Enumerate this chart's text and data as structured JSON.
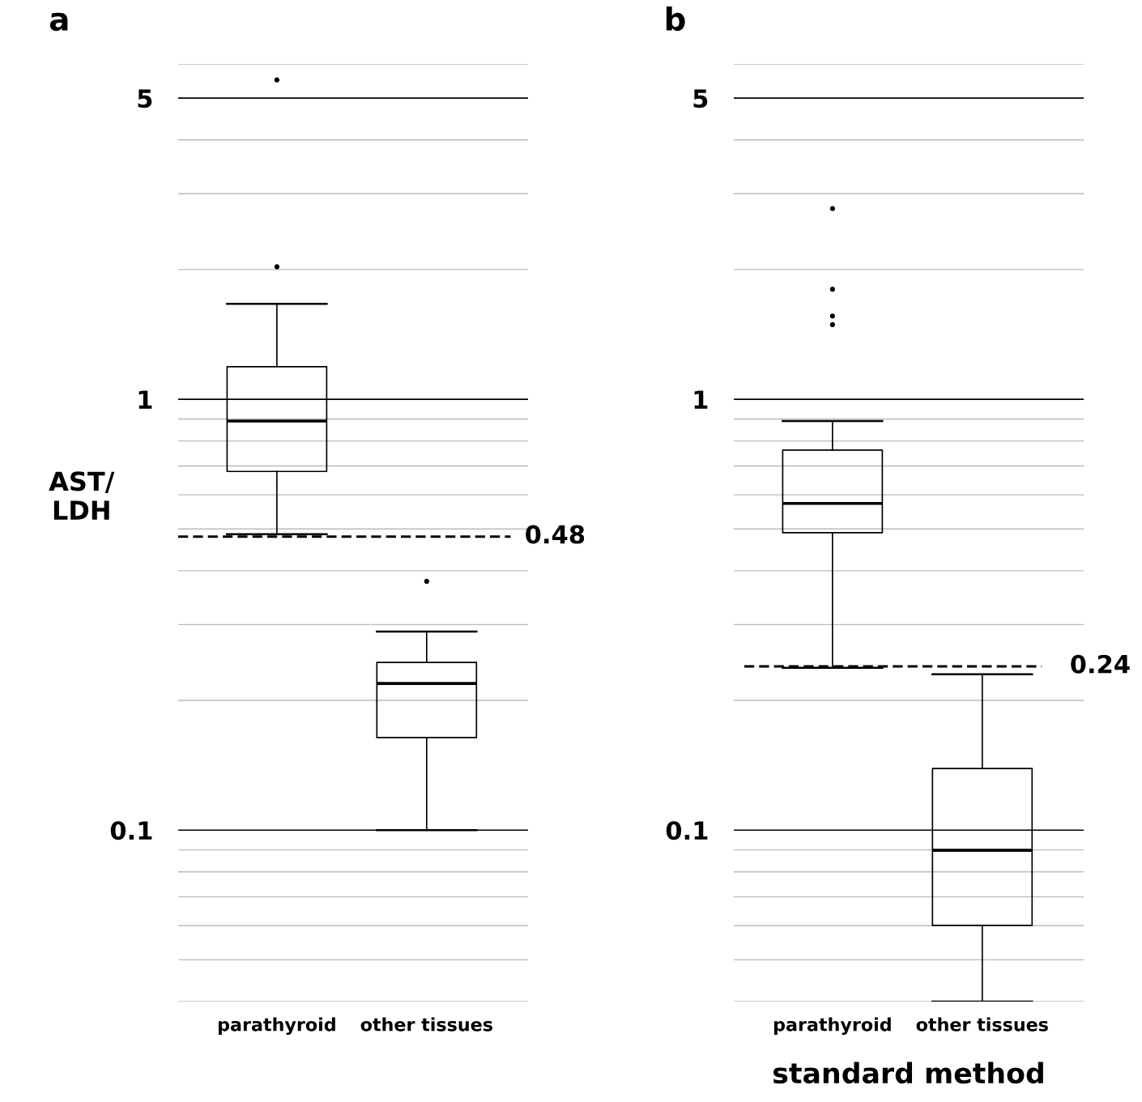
{
  "chart_data": [
    {
      "type": "box",
      "title": "a",
      "ylabel": "AST/\nLDH",
      "categories": [
        "parathyroid",
        "other tissues"
      ],
      "log": true,
      "ylim": [
        0.04,
        6
      ],
      "grid": "y",
      "yticks": [
        {
          "value": 0.04,
          "label": null
        },
        {
          "value": 0.05,
          "label": null
        },
        {
          "value": 0.06,
          "label": null
        },
        {
          "value": 0.07,
          "label": null
        },
        {
          "value": 0.08,
          "label": null
        },
        {
          "value": 0.09,
          "label": null
        },
        0.1,
        {
          "value": 0.2,
          "label": null
        },
        {
          "value": 0.3,
          "label": null
        },
        {
          "value": 0.4,
          "label": null
        },
        {
          "value": 0.5,
          "label": null
        },
        {
          "value": 0.6,
          "label": null
        },
        {
          "value": 0.7,
          "label": null
        },
        {
          "value": 0.8,
          "label": null
        },
        {
          "value": 0.9,
          "label": null
        },
        1,
        {
          "value": 2,
          "label": null
        },
        {
          "value": 3,
          "label": null
        },
        {
          "value": 4,
          "label": null
        },
        5,
        {
          "value": 6,
          "label": null
        }
      ],
      "boxes": [
        {
          "low": 0.486,
          "q1": 0.68,
          "median": 0.89,
          "q3": 1.19,
          "high": 1.665,
          "outliers": [
            5.51,
            2.03
          ]
        },
        {
          "low": 0.1,
          "q1": 0.164,
          "median": 0.219,
          "q3": 0.245,
          "high": 0.289,
          "outliers": [
            0.378
          ]
        }
      ],
      "ref_lines": [
        {
          "axis": "y",
          "value": 0.48,
          "label": "0.48",
          "line_style": "dashed"
        }
      ]
    },
    {
      "type": "box",
      "title": "b",
      "xlabel": "standard method",
      "categories": [
        "parathyroid",
        "other tissues"
      ],
      "log": true,
      "ylim": [
        0.04,
        6
      ],
      "grid": "y",
      "yticks": [
        {
          "value": 0.04,
          "label": null
        },
        {
          "value": 0.05,
          "label": null
        },
        {
          "value": 0.06,
          "label": null
        },
        {
          "value": 0.07,
          "label": null
        },
        {
          "value": 0.08,
          "label": null
        },
        {
          "value": 0.09,
          "label": null
        },
        0.1,
        {
          "value": 0.2,
          "label": null
        },
        {
          "value": 0.3,
          "label": null
        },
        {
          "value": 0.4,
          "label": null
        },
        {
          "value": 0.5,
          "label": null
        },
        {
          "value": 0.6,
          "label": null
        },
        {
          "value": 0.7,
          "label": null
        },
        {
          "value": 0.8,
          "label": null
        },
        {
          "value": 0.9,
          "label": null
        },
        1,
        {
          "value": 2,
          "label": null
        },
        {
          "value": 3,
          "label": null
        },
        {
          "value": 4,
          "label": null
        },
        5,
        {
          "value": 6,
          "label": null
        }
      ],
      "boxes": [
        {
          "low": 0.238,
          "q1": 0.49,
          "median": 0.573,
          "q3": 0.762,
          "high": 0.89,
          "outliers": [
            2.77,
            1.8,
            1.56,
            1.49
          ]
        },
        {
          "low": 0.04,
          "q1": 0.0601,
          "median": 0.0898,
          "q3": 0.139,
          "high": 0.23
        }
      ],
      "ref_lines": [
        {
          "axis": "y",
          "value": 0.24,
          "label": "0.24",
          "line_style": "dashed"
        }
      ]
    }
  ]
}
